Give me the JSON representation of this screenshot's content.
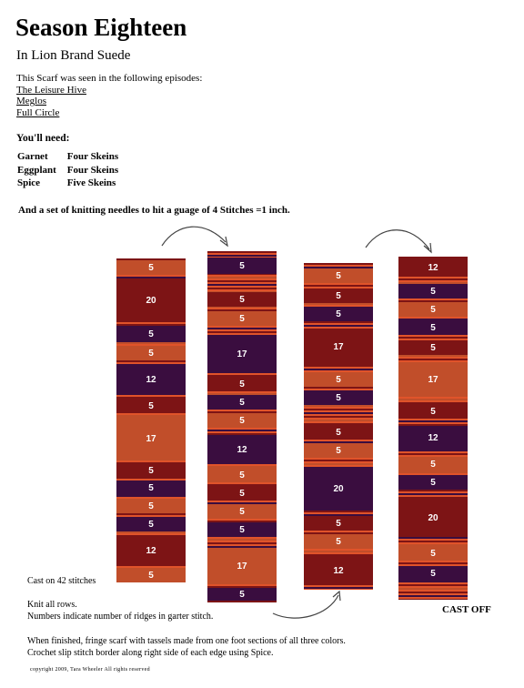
{
  "title": "Season Eighteen",
  "subtitle": "In Lion Brand Suede",
  "intro": {
    "text": "This Scarf was seen in the following episodes:",
    "episodes": [
      "The Leisure Hive",
      "Meglos",
      "Full Circle"
    ]
  },
  "you_need": "You'll need:",
  "yarn": [
    {
      "color": "Garnet",
      "amount": "Four Skeins"
    },
    {
      "color": "Eggplant",
      "amount": "Four Skeins"
    },
    {
      "color": "Spice",
      "amount": "Five Skeins"
    }
  ],
  "needles": "And a set of knitting needles to hit a guage of 4 Stitches =1 inch.",
  "colors": {
    "garnet": "#7d1415",
    "eggplant": "#3a0d3f",
    "spice": "#c14e2a",
    "stripe_bg": "#e0532a",
    "arrow": "#444444"
  },
  "scarf_columns": [
    {
      "labels": [
        "5",
        "20",
        "5",
        "5",
        "12",
        "5",
        "17",
        "5",
        "5",
        "5",
        "5",
        "12",
        "5"
      ]
    },
    {
      "labels": [
        "5",
        "5",
        "5",
        "17",
        "5",
        "5",
        "5",
        "12",
        "5",
        "5",
        "5",
        "5",
        "17",
        "5"
      ]
    },
    {
      "labels": [
        "5",
        "5",
        "5",
        "17",
        "5",
        "5",
        "5",
        "5",
        "20",
        "5",
        "5",
        "12"
      ]
    },
    {
      "labels": [
        "12",
        "5",
        "5",
        "5",
        "5",
        "17",
        "5",
        "12",
        "5",
        "5",
        "20",
        "5",
        "5"
      ]
    }
  ],
  "cast_on": "Cast on 42 stitches",
  "knit_rows": "Knit all rows.",
  "numbers_note": "Numbers indicate number of ridges in garter stitch.",
  "cast_off": "CAST OFF",
  "finishing_1": "When finished, fringe scarf with tassels made from one foot sections of all three colors.",
  "finishing_2": "Crochet slip stitch border along right side of each edge using Spice.",
  "copyright": "copyright 2009, Tara Wheeler   All rights reserved"
}
